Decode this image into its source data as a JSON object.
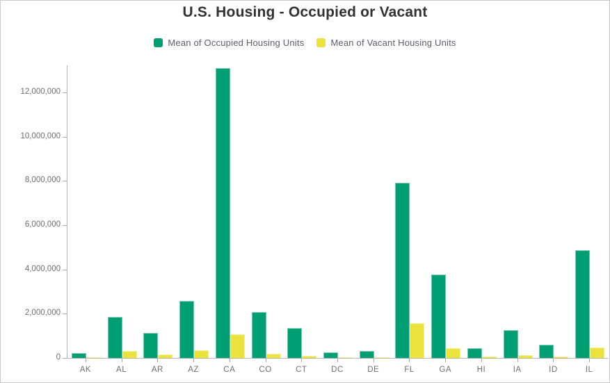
{
  "chart_data": {
    "type": "bar",
    "title": "U.S. Housing - Occupied or Vacant",
    "categories": [
      "AK",
      "AL",
      "AR",
      "AZ",
      "CA",
      "CO",
      "CT",
      "DC",
      "DE",
      "FL",
      "GA",
      "HI",
      "IA",
      "ID",
      "IL"
    ],
    "series": [
      {
        "name": "Mean of Occupied Housing Units",
        "color": "#009e73",
        "values": [
          215000,
          1850000,
          1120000,
          2590000,
          13100000,
          2080000,
          1350000,
          240000,
          325000,
          7910000,
          3780000,
          430000,
          1250000,
          610000,
          4870000
        ]
      },
      {
        "name": "Mean of Vacant Housing Units",
        "color": "#ebe23d",
        "values": [
          45000,
          325000,
          160000,
          345000,
          1060000,
          180000,
          105000,
          25000,
          45000,
          1580000,
          450000,
          60000,
          115000,
          60000,
          460000
        ]
      }
    ],
    "xlabel": "",
    "ylabel": "",
    "ylim": [
      0,
      13225000
    ],
    "yticks": [
      0,
      2000000,
      4000000,
      6000000,
      8000000,
      10000000,
      12000000
    ],
    "ytick_labels": [
      "0",
      "2,000,000",
      "4,000,000",
      "6,000,000",
      "8,000,000",
      "10,000,000",
      "12,000,000"
    ],
    "grid": false,
    "legend_position": "top"
  },
  "colors": {
    "axis_line": "#b5b5b5",
    "tick": "#a8a8a8",
    "axis_text": "#6e6e6e",
    "title_text": "#323232",
    "legend_text": "#5d5a6a"
  }
}
